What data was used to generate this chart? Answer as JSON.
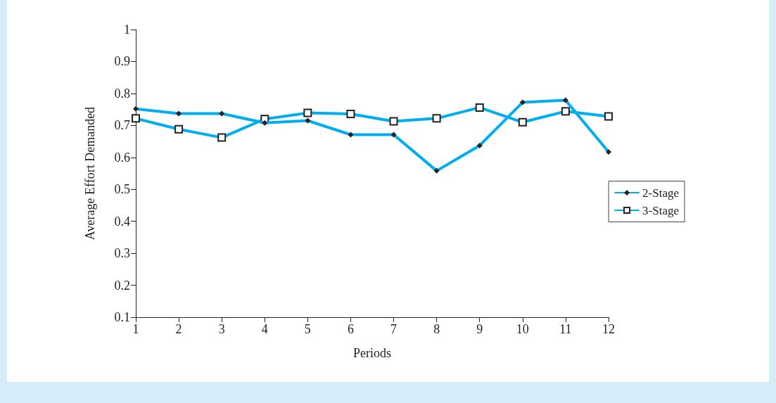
{
  "chart_data": {
    "type": "line",
    "xlabel": "Periods",
    "ylabel": "Average Effort Demanded",
    "x": [
      1,
      2,
      3,
      4,
      5,
      6,
      7,
      8,
      9,
      10,
      11,
      12
    ],
    "series": [
      {
        "name": "2-Stage",
        "color": "#00aeef",
        "marker": "diamond",
        "values": [
          0.752,
          0.737,
          0.737,
          0.708,
          0.715,
          0.671,
          0.671,
          0.558,
          0.637,
          0.772,
          0.779,
          0.617
        ]
      },
      {
        "name": "3-Stage",
        "color": "#00aeef",
        "marker": "square",
        "values": [
          0.722,
          0.688,
          0.662,
          0.72,
          0.739,
          0.736,
          0.713,
          0.722,
          0.756,
          0.71,
          0.744,
          0.728
        ]
      }
    ],
    "xlim": [
      1,
      12
    ],
    "xticks": [
      1,
      2,
      3,
      4,
      5,
      6,
      7,
      8,
      9,
      10,
      11,
      12
    ],
    "ylim": [
      0.1,
      1
    ],
    "yticks": [
      0.1,
      0.2,
      0.3,
      0.4,
      0.5,
      0.6,
      0.7,
      0.8,
      0.9,
      1
    ],
    "grid": false,
    "legend": "right",
    "line_style": "solid"
  }
}
